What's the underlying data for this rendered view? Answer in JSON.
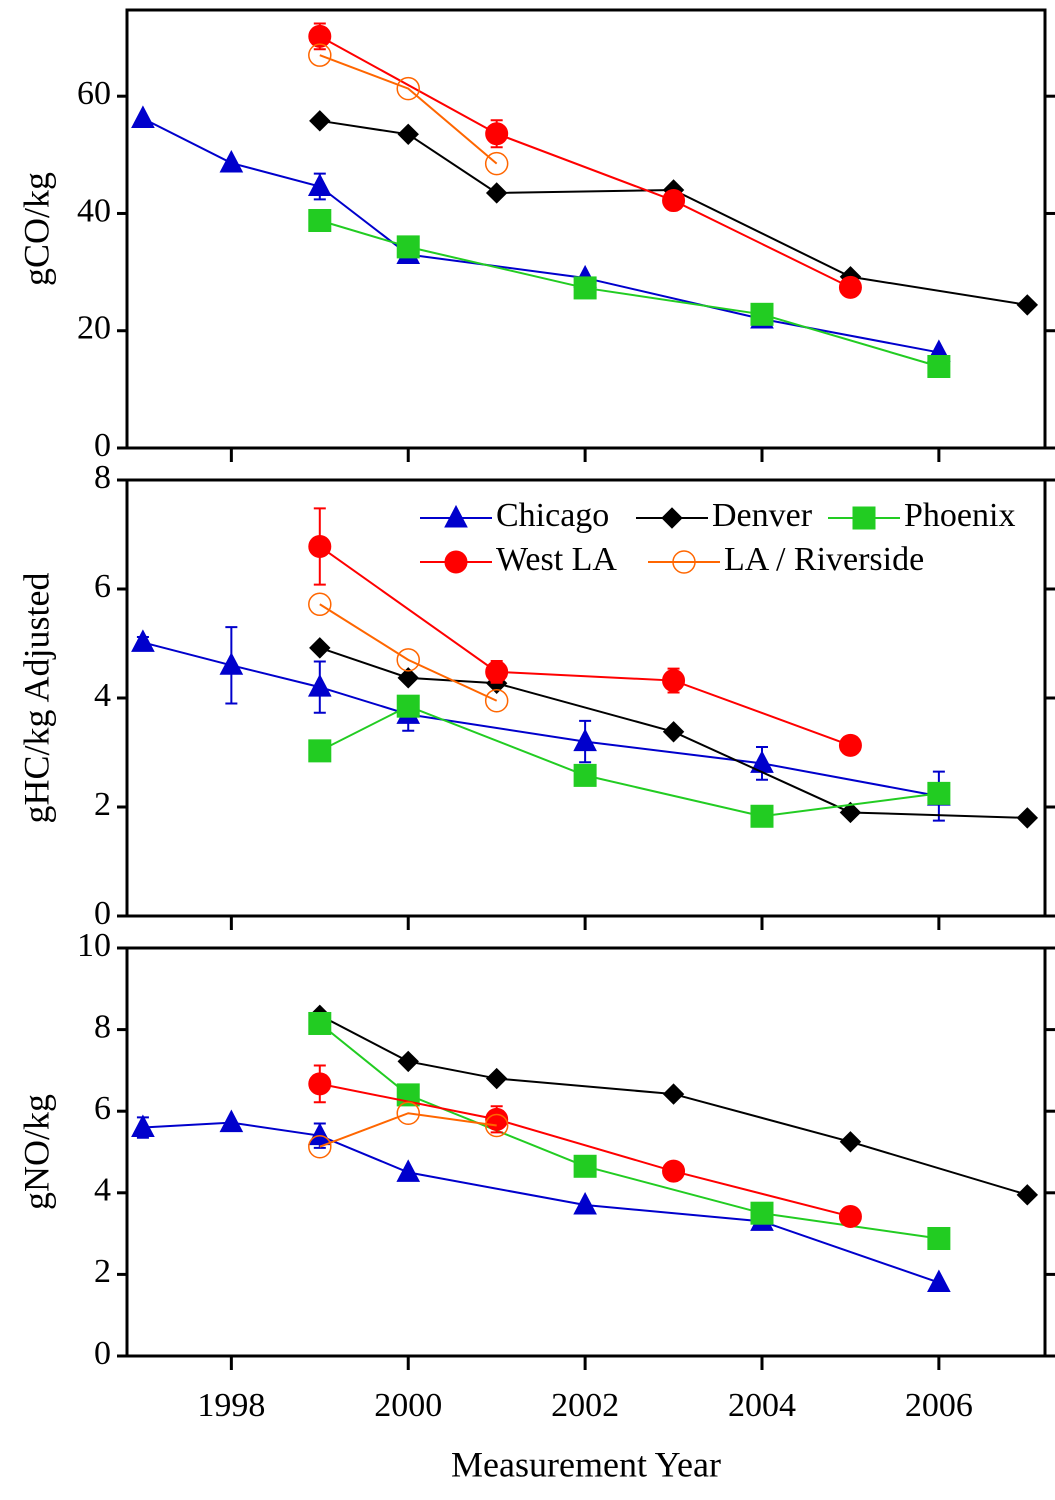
{
  "chart_data": [
    {
      "type": "line",
      "ylabel": "gCO/kg",
      "xlim": [
        1996.82,
        2007.2
      ],
      "ylim": [
        0,
        74.7
      ],
      "yticks": [
        0,
        20,
        40,
        60
      ],
      "series": [
        {
          "color": "#0000cc",
          "marker": "triangle",
          "x": [
            1997,
            1998,
            1999,
            2000,
            2002,
            2004,
            2006
          ],
          "values": [
            56.2,
            48.6,
            44.6,
            33,
            29,
            22,
            16.3
          ],
          "errors": [
            null,
            null,
            2.2,
            null,
            null,
            null,
            null
          ]
        },
        {
          "color": "#000000",
          "marker": "diamond",
          "x": [
            1999,
            2000,
            2001,
            2003,
            2005,
            2007
          ],
          "values": [
            55.8,
            53.5,
            43.5,
            44,
            29.2,
            24.4
          ]
        },
        {
          "color": "#22cc22",
          "marker": "square",
          "x": [
            1999,
            2000,
            2002,
            2004,
            2006
          ],
          "values": [
            38.8,
            34.3,
            27.3,
            22.8,
            13.9
          ]
        },
        {
          "color": "#ff0000",
          "marker": "circle",
          "x": [
            1999,
            2001,
            2003,
            2005
          ],
          "values": [
            70.2,
            53.6,
            42.2,
            27.4
          ],
          "errors": [
            2.2,
            2.3,
            null,
            null
          ]
        },
        {
          "color": "#ff6600",
          "marker": "circle-open",
          "x": [
            1999,
            2000,
            2001
          ],
          "values": [
            67,
            61.3,
            48.5
          ]
        }
      ]
    },
    {
      "type": "line",
      "ylabel": "gHC/kg Adjusted",
      "xlim": [
        1996.82,
        2007.2
      ],
      "ylim": [
        0,
        8
      ],
      "yticks": [
        0,
        2,
        4,
        6,
        8
      ],
      "series": [
        {
          "name": "Chicago",
          "color": "#0000cc",
          "marker": "triangle",
          "x": [
            1997,
            1998,
            1999,
            2000,
            2002,
            2004,
            2006
          ],
          "values": [
            5.02,
            4.6,
            4.2,
            3.7,
            3.2,
            2.8,
            2.2
          ],
          "errors": [
            0.1,
            0.7,
            0.47,
            0.3,
            0.38,
            0.3,
            0.45
          ]
        },
        {
          "name": "Denver",
          "color": "#000000",
          "marker": "diamond",
          "x": [
            1999,
            2000,
            2001,
            2003,
            2005,
            2007
          ],
          "values": [
            4.92,
            4.37,
            4.27,
            3.38,
            1.9,
            1.8
          ]
        },
        {
          "name": "Phoenix",
          "color": "#22cc22",
          "marker": "square",
          "x": [
            1999,
            2000,
            2002,
            2004,
            2006
          ],
          "values": [
            3.03,
            3.85,
            2.58,
            1.83,
            2.25
          ]
        },
        {
          "name": "West LA",
          "color": "#ff0000",
          "marker": "circle",
          "x": [
            1999,
            2001,
            2003,
            2005
          ],
          "values": [
            6.78,
            4.48,
            4.32,
            3.13
          ],
          "errors": [
            0.7,
            0.2,
            0.22,
            null
          ]
        },
        {
          "name": "LA / Riverside",
          "color": "#ff6600",
          "marker": "circle-open",
          "x": [
            1999,
            2000,
            2001
          ],
          "values": [
            5.72,
            4.7,
            3.95
          ]
        }
      ]
    },
    {
      "type": "line",
      "ylabel": "gNO/kg",
      "xlabel": "Measurement Year",
      "xlim": [
        1996.82,
        2007.2
      ],
      "xticks": [
        1998,
        2000,
        2002,
        2004,
        2006
      ],
      "ylim": [
        0,
        10
      ],
      "yticks": [
        0,
        2,
        4,
        6,
        8,
        10
      ],
      "series": [
        {
          "color": "#0000cc",
          "marker": "triangle",
          "x": [
            1997,
            1998,
            1999,
            2000,
            2002,
            2004,
            2006
          ],
          "values": [
            5.6,
            5.72,
            5.4,
            4.5,
            3.7,
            3.3,
            1.8
          ],
          "errors": [
            0.25,
            null,
            0.3,
            null,
            null,
            null,
            null
          ]
        },
        {
          "color": "#000000",
          "marker": "diamond",
          "x": [
            1999,
            2000,
            2001,
            2003,
            2005,
            2007
          ],
          "values": [
            8.35,
            7.22,
            6.8,
            6.42,
            5.25,
            3.95
          ]
        },
        {
          "color": "#22cc22",
          "marker": "square",
          "x": [
            1999,
            2000,
            2002,
            2004,
            2006
          ],
          "values": [
            8.15,
            6.4,
            4.65,
            3.5,
            2.88
          ]
        },
        {
          "color": "#ff0000",
          "marker": "circle",
          "x": [
            1999,
            2001,
            2003,
            2005
          ],
          "values": [
            6.67,
            5.8,
            4.53,
            3.42
          ],
          "errors": [
            0.45,
            0.32,
            null,
            null
          ]
        },
        {
          "color": "#ff6600",
          "marker": "circle-open",
          "x": [
            1999,
            2000,
            2001
          ],
          "values": [
            5.13,
            5.95,
            5.65
          ]
        }
      ]
    }
  ]
}
